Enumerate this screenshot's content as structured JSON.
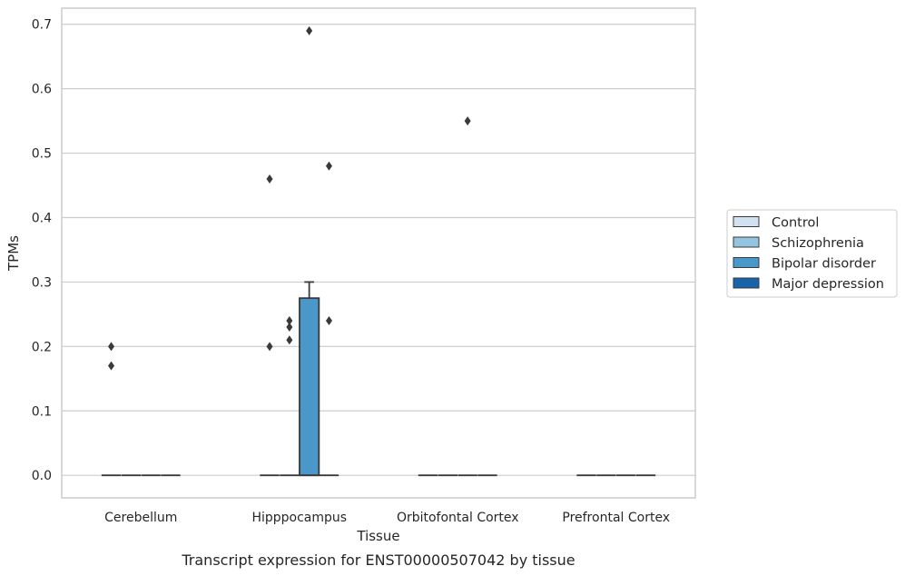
{
  "chart_data": {
    "type": "box",
    "title": "",
    "caption": "Transcript expression for ENST00000507042 by tissue",
    "xlabel": "Tissue",
    "ylabel": "TPMs",
    "ylim": [
      -0.035,
      0.725
    ],
    "yticks": [
      "0.0",
      "0.1",
      "0.2",
      "0.3",
      "0.4",
      "0.5",
      "0.6",
      "0.7"
    ],
    "categories": [
      "Cerebellum",
      "Hipppocampus",
      "Orbitofontal Cortex",
      "Prefrontal Cortex"
    ],
    "grid": true,
    "legend_position": "right",
    "series": [
      {
        "name": "Control",
        "color": "#d0e1f2",
        "boxes": [
          {
            "q1": 0,
            "median": 0,
            "q3": 0,
            "whisker_low": 0,
            "whisker_high": 0,
            "outliers": [
              0.2,
              0.17
            ]
          },
          {
            "q1": 0,
            "median": 0,
            "q3": 0,
            "whisker_low": 0,
            "whisker_high": 0,
            "outliers": [
              0.46,
              0.2
            ]
          },
          {
            "q1": 0,
            "median": 0,
            "q3": 0,
            "whisker_low": 0,
            "whisker_high": 0,
            "outliers": []
          },
          {
            "q1": 0,
            "median": 0,
            "q3": 0,
            "whisker_low": 0,
            "whisker_high": 0,
            "outliers": []
          }
        ]
      },
      {
        "name": "Schizophrenia",
        "color": "#94c4df",
        "boxes": [
          {
            "q1": 0,
            "median": 0,
            "q3": 0,
            "whisker_low": 0,
            "whisker_high": 0,
            "outliers": []
          },
          {
            "q1": 0,
            "median": 0,
            "q3": 0,
            "whisker_low": 0,
            "whisker_high": 0,
            "outliers": [
              0.24,
              0.23,
              0.21
            ]
          },
          {
            "q1": 0,
            "median": 0,
            "q3": 0,
            "whisker_low": 0,
            "whisker_high": 0,
            "outliers": []
          },
          {
            "q1": 0,
            "median": 0,
            "q3": 0,
            "whisker_low": 0,
            "whisker_high": 0,
            "outliers": []
          }
        ]
      },
      {
        "name": "Bipolar disorder",
        "color": "#4a98c9",
        "boxes": [
          {
            "q1": 0,
            "median": 0,
            "q3": 0,
            "whisker_low": 0,
            "whisker_high": 0,
            "outliers": []
          },
          {
            "q1": 0,
            "median": 0,
            "q3": 0.275,
            "whisker_low": 0,
            "whisker_high": 0.3,
            "outliers": [
              0.69
            ]
          },
          {
            "q1": 0,
            "median": 0,
            "q3": 0,
            "whisker_low": 0,
            "whisker_high": 0,
            "outliers": [
              0.55
            ]
          },
          {
            "q1": 0,
            "median": 0,
            "q3": 0,
            "whisker_low": 0,
            "whisker_high": 0,
            "outliers": []
          }
        ]
      },
      {
        "name": "Major depression",
        "color": "#1764ab",
        "boxes": [
          {
            "q1": 0,
            "median": 0,
            "q3": 0,
            "whisker_low": 0,
            "whisker_high": 0,
            "outliers": []
          },
          {
            "q1": 0,
            "median": 0,
            "q3": 0,
            "whisker_low": 0,
            "whisker_high": 0,
            "outliers": [
              0.48,
              0.24
            ]
          },
          {
            "q1": 0,
            "median": 0,
            "q3": 0,
            "whisker_low": 0,
            "whisker_high": 0,
            "outliers": []
          },
          {
            "q1": 0,
            "median": 0,
            "q3": 0,
            "whisker_low": 0,
            "whisker_high": 0,
            "outliers": []
          }
        ]
      }
    ]
  }
}
